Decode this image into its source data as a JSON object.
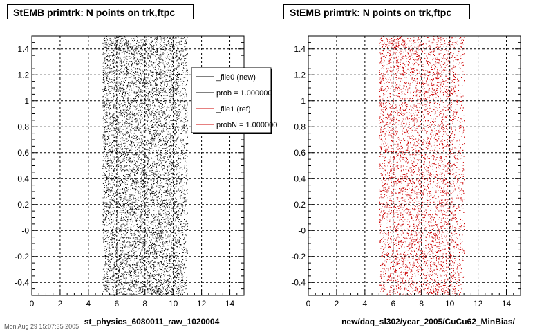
{
  "footer_text": "Mon Aug 29 15:07:35 2005",
  "colors": {
    "series0": "#000000",
    "series1": "#cc0000"
  },
  "chart_data": [
    {
      "type": "scatter",
      "title": "StEMB primtrk: N points on trk,ftpc",
      "xlabel": "st_physics_6080011_raw_1020004",
      "ylabel": "",
      "xlim": [
        0,
        15
      ],
      "ylim": [
        -0.5,
        1.5
      ],
      "xticks": [
        0,
        2,
        4,
        6,
        8,
        10,
        12,
        14
      ],
      "yticks": [
        -0.4,
        -0.2,
        0,
        0.2,
        0.4,
        0.6,
        0.8,
        1,
        1.2,
        1.4
      ],
      "ytick_labels": [
        "-0.4",
        "-0.2",
        "-0",
        "0.2",
        "0.4",
        "0.6",
        "0.8",
        "1",
        "1.2",
        "1.4"
      ],
      "grid": true,
      "series": [
        {
          "color": "#000000",
          "x_range": [
            5,
            11
          ],
          "y_range": [
            -0.5,
            1.5
          ]
        }
      ],
      "legend": {
        "position": "top-right",
        "entries": [
          {
            "label": "_file0 (new)",
            "color": "#000000"
          },
          {
            "label": "prob = 1.000000",
            "color": "#000000"
          },
          {
            "label": "_file1 (ref)",
            "color": "#cc0000"
          },
          {
            "label": "probN = 1.000000",
            "color": "#cc0000"
          }
        ]
      }
    },
    {
      "type": "scatter",
      "title": "StEMB primtrk: N points on trk,ftpc",
      "xlabel": "new/daq_sl302/year_2005/CuCu62_MinBias/",
      "ylabel": "",
      "xlim": [
        0,
        15
      ],
      "ylim": [
        -0.5,
        1.5
      ],
      "xticks": [
        0,
        2,
        4,
        6,
        8,
        10,
        12,
        14
      ],
      "yticks": [
        -0.4,
        -0.2,
        0,
        0.2,
        0.4,
        0.6,
        0.8,
        1,
        1.2,
        1.4
      ],
      "ytick_labels": [
        "-0.4",
        "-0.2",
        "-0",
        "0.2",
        "0.4",
        "0.6",
        "0.8",
        "1",
        "1.2",
        "1.4"
      ],
      "grid": true,
      "series": [
        {
          "color": "#cc0000",
          "x_range": [
            5,
            11
          ],
          "y_range": [
            -0.5,
            1.5
          ]
        }
      ]
    }
  ]
}
